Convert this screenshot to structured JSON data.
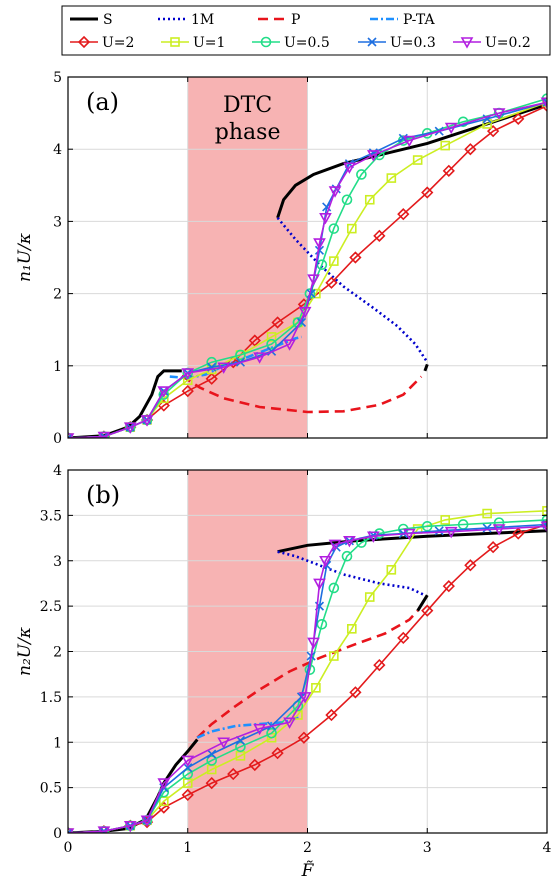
{
  "legend": {
    "row1": [
      {
        "label": "S",
        "color": "#000000",
        "dash": "solid"
      },
      {
        "label": "1M",
        "color": "#0000CC",
        "dash": "dotted"
      },
      {
        "label": "P",
        "color": "#E8141C",
        "dash": "dashed"
      },
      {
        "label": "P-TA",
        "color": "#1E90FF",
        "dash": "dashdot"
      }
    ],
    "row2": [
      {
        "label": "U=2",
        "color": "#E31A1C",
        "marker": "diamond"
      },
      {
        "label": "U=1",
        "color": "#CCEE22",
        "marker": "square"
      },
      {
        "label": "U=0.5",
        "color": "#22DD88",
        "marker": "circle"
      },
      {
        "label": "U=0.3",
        "color": "#1E6FE0",
        "marker": "x"
      },
      {
        "label": "U=0.2",
        "color": "#B21FE0",
        "marker": "triangle-down"
      }
    ]
  },
  "region": {
    "x_start": 1,
    "x_end": 2,
    "color": "#F7B3B3",
    "label_line1": "DTC",
    "label_line2": "phase"
  },
  "xaxis": {
    "label": "F̃",
    "ticks": [
      "0",
      "1",
      "2",
      "3",
      "4"
    ],
    "lim": [
      0,
      4
    ]
  },
  "chart_data": [
    {
      "type": "line",
      "panel_label": "(a)",
      "ylabel": "n₁U/κ",
      "ylim": [
        0,
        5
      ],
      "yticks": [
        "0",
        "1",
        "2",
        "3",
        "4",
        "5"
      ],
      "grid": true,
      "series": [
        {
          "name": "S",
          "lines": [
            [
              [
                0,
                0
              ],
              [
                0.3,
                0.03
              ],
              [
                0.5,
                0.15
              ],
              [
                0.6,
                0.3
              ],
              [
                0.7,
                0.6
              ],
              [
                0.75,
                0.85
              ],
              [
                0.8,
                0.93
              ],
              [
                0.9,
                0.93
              ],
              [
                0.95,
                0.93
              ]
            ],
            [
              [
                1.75,
                3.05
              ],
              [
                1.8,
                3.3
              ],
              [
                1.9,
                3.5
              ],
              [
                2.05,
                3.65
              ],
              [
                2.3,
                3.8
              ],
              [
                2.6,
                3.92
              ],
              [
                3.0,
                4.08
              ],
              [
                3.5,
                4.35
              ],
              [
                4.0,
                4.62
              ]
            ],
            [
              [
                2.98,
                0.93
              ],
              [
                3.0,
                1.02
              ]
            ]
          ]
        },
        {
          "name": "1M",
          "lines": [
            [
              [
                1.75,
                3.05
              ],
              [
                1.9,
                2.75
              ],
              [
                2.1,
                2.4
              ],
              [
                2.3,
                2.1
              ],
              [
                2.55,
                1.8
              ],
              [
                2.75,
                1.55
              ],
              [
                2.9,
                1.3
              ],
              [
                3.0,
                1.05
              ]
            ]
          ]
        },
        {
          "name": "P",
          "lines": [
            [
              [
                0.95,
                0.86
              ],
              [
                1.1,
                0.7
              ],
              [
                1.3,
                0.55
              ],
              [
                1.6,
                0.43
              ],
              [
                2.0,
                0.36
              ],
              [
                2.3,
                0.37
              ],
              [
                2.6,
                0.46
              ],
              [
                2.8,
                0.6
              ],
              [
                2.95,
                0.85
              ]
            ]
          ]
        },
        {
          "name": "P-TA",
          "lines": [
            [
              [
                0.85,
                0.85
              ],
              [
                1.0,
                0.83
              ],
              [
                1.15,
                0.88
              ],
              [
                1.3,
                1.0
              ],
              [
                1.5,
                1.12
              ],
              [
                1.7,
                1.25
              ],
              [
                1.9,
                1.38
              ],
              [
                1.95,
                1.4
              ]
            ]
          ]
        },
        {
          "name": "U=2",
          "x": [
            0,
            0.3,
            0.52,
            0.66,
            0.8,
            1.0,
            1.2,
            1.38,
            1.56,
            1.75,
            1.97,
            2.2,
            2.4,
            2.6,
            2.8,
            3.0,
            3.18,
            3.36,
            3.55,
            3.76,
            4.0
          ],
          "y": [
            0,
            0.02,
            0.15,
            0.25,
            0.45,
            0.65,
            0.82,
            1.05,
            1.35,
            1.6,
            1.85,
            2.15,
            2.5,
            2.8,
            3.1,
            3.4,
            3.7,
            4.0,
            4.25,
            4.42,
            4.6
          ]
        },
        {
          "name": "U=1",
          "x": [
            0,
            0.3,
            0.52,
            0.66,
            0.8,
            1.0,
            1.2,
            1.44,
            1.7,
            1.92,
            2.07,
            2.22,
            2.37,
            2.52,
            2.7,
            2.92,
            3.15,
            3.5,
            4.0
          ],
          "y": [
            0,
            0.02,
            0.15,
            0.25,
            0.55,
            0.8,
            0.95,
            1.15,
            1.4,
            1.6,
            2.0,
            2.45,
            2.9,
            3.3,
            3.6,
            3.85,
            4.05,
            4.35,
            4.65
          ]
        },
        {
          "name": "U=0.5",
          "x": [
            0,
            0.3,
            0.52,
            0.66,
            0.8,
            1.0,
            1.2,
            1.44,
            1.7,
            1.92,
            2.02,
            2.12,
            2.22,
            2.33,
            2.45,
            2.6,
            2.8,
            3.0,
            3.3,
            3.6,
            4.0
          ],
          "y": [
            0,
            0.02,
            0.15,
            0.25,
            0.6,
            0.9,
            1.05,
            1.15,
            1.3,
            1.6,
            2.0,
            2.4,
            2.9,
            3.3,
            3.65,
            3.92,
            4.12,
            4.22,
            4.38,
            4.5,
            4.7
          ]
        },
        {
          "name": "U=0.3",
          "x": [
            0,
            0.3,
            0.52,
            0.66,
            0.8,
            1.0,
            1.2,
            1.44,
            1.7,
            1.95,
            2.03,
            2.1,
            2.16,
            2.24,
            2.35,
            2.55,
            2.8,
            3.1,
            3.5,
            4.0
          ],
          "y": [
            0,
            0.02,
            0.15,
            0.25,
            0.65,
            0.9,
            0.98,
            1.05,
            1.2,
            1.6,
            2.0,
            2.6,
            3.2,
            3.45,
            3.8,
            3.95,
            4.15,
            4.25,
            4.42,
            4.65
          ]
        },
        {
          "name": "U=0.2",
          "x": [
            0,
            0.3,
            0.52,
            0.66,
            0.8,
            1.0,
            1.3,
            1.6,
            1.85,
            1.98,
            2.05,
            2.1,
            2.15,
            2.23,
            2.35,
            2.55,
            2.85,
            3.2,
            3.6,
            4.0
          ],
          "y": [
            0,
            0.02,
            0.15,
            0.25,
            0.65,
            0.9,
            0.98,
            1.12,
            1.3,
            1.75,
            2.2,
            2.7,
            3.05,
            3.42,
            3.75,
            3.92,
            4.12,
            4.3,
            4.5,
            4.65
          ]
        }
      ]
    },
    {
      "type": "line",
      "panel_label": "(b)",
      "ylabel": "n₂U/κ",
      "ylim": [
        0,
        4
      ],
      "yticks": [
        "0",
        "0.5",
        "1",
        "1.5",
        "2",
        "2.5",
        "3",
        "3.5",
        "4"
      ],
      "grid": true,
      "series": [
        {
          "name": "S",
          "lines": [
            [
              [
                0,
                0
              ],
              [
                0.3,
                0.02
              ],
              [
                0.5,
                0.05
              ],
              [
                0.65,
                0.15
              ],
              [
                0.75,
                0.4
              ],
              [
                0.8,
                0.55
              ],
              [
                0.9,
                0.75
              ],
              [
                1.0,
                0.9
              ],
              [
                1.08,
                1.03
              ]
            ],
            [
              [
                1.75,
                3.1
              ],
              [
                2.0,
                3.17
              ],
              [
                2.4,
                3.22
              ],
              [
                3.0,
                3.27
              ],
              [
                3.5,
                3.3
              ],
              [
                4.0,
                3.33
              ]
            ],
            [
              [
                2.92,
                2.45
              ],
              [
                3.0,
                2.62
              ]
            ]
          ]
        },
        {
          "name": "1M",
          "lines": [
            [
              [
                1.75,
                3.1
              ],
              [
                1.9,
                3.05
              ],
              [
                2.1,
                2.95
              ],
              [
                2.3,
                2.85
              ],
              [
                2.6,
                2.75
              ],
              [
                2.85,
                2.7
              ],
              [
                2.98,
                2.62
              ]
            ]
          ]
        },
        {
          "name": "P",
          "lines": [
            [
              [
                1.08,
                1.05
              ],
              [
                1.2,
                1.2
              ],
              [
                1.4,
                1.4
              ],
              [
                1.6,
                1.58
              ],
              [
                1.85,
                1.78
              ],
              [
                2.1,
                1.93
              ],
              [
                2.4,
                2.08
              ],
              [
                2.65,
                2.2
              ],
              [
                2.85,
                2.35
              ],
              [
                2.92,
                2.45
              ]
            ]
          ]
        },
        {
          "name": "P-TA",
          "lines": [
            [
              [
                1.08,
                1.05
              ],
              [
                1.2,
                1.12
              ],
              [
                1.4,
                1.18
              ],
              [
                1.6,
                1.2
              ],
              [
                1.8,
                1.22
              ],
              [
                1.95,
                1.28
              ]
            ]
          ]
        },
        {
          "name": "U=2",
          "x": [
            0,
            0.3,
            0.52,
            0.66,
            0.8,
            1.0,
            1.2,
            1.38,
            1.56,
            1.75,
            1.97,
            2.2,
            2.4,
            2.6,
            2.8,
            3.0,
            3.18,
            3.36,
            3.55,
            3.76,
            4.0
          ],
          "y": [
            0,
            0.02,
            0.08,
            0.12,
            0.28,
            0.42,
            0.55,
            0.65,
            0.75,
            0.88,
            1.05,
            1.3,
            1.55,
            1.85,
            2.15,
            2.45,
            2.72,
            2.95,
            3.15,
            3.3,
            3.4
          ]
        },
        {
          "name": "U=1",
          "x": [
            0,
            0.3,
            0.52,
            0.66,
            0.8,
            1.0,
            1.2,
            1.44,
            1.7,
            1.92,
            2.07,
            2.22,
            2.37,
            2.52,
            2.7,
            2.92,
            3.15,
            3.5,
            4.0
          ],
          "y": [
            0,
            0.02,
            0.08,
            0.14,
            0.35,
            0.55,
            0.7,
            0.85,
            1.05,
            1.3,
            1.6,
            1.95,
            2.25,
            2.6,
            2.9,
            3.35,
            3.45,
            3.52,
            3.55
          ]
        },
        {
          "name": "U=0.5",
          "x": [
            0,
            0.3,
            0.52,
            0.66,
            0.8,
            1.0,
            1.2,
            1.44,
            1.7,
            1.92,
            2.02,
            2.12,
            2.22,
            2.33,
            2.45,
            2.6,
            2.8,
            3.0,
            3.3,
            3.6,
            4.0
          ],
          "y": [
            0,
            0.02,
            0.08,
            0.14,
            0.45,
            0.65,
            0.8,
            0.95,
            1.1,
            1.4,
            1.8,
            2.3,
            2.7,
            3.05,
            3.2,
            3.3,
            3.35,
            3.38,
            3.4,
            3.42,
            3.45
          ]
        },
        {
          "name": "U=0.3",
          "x": [
            0,
            0.3,
            0.52,
            0.66,
            0.8,
            1.0,
            1.2,
            1.44,
            1.7,
            1.95,
            2.03,
            2.1,
            2.16,
            2.24,
            2.35,
            2.55,
            2.8,
            3.1,
            3.5,
            4.0
          ],
          "y": [
            0,
            0.02,
            0.08,
            0.14,
            0.5,
            0.72,
            0.87,
            1.02,
            1.18,
            1.5,
            1.95,
            2.5,
            2.95,
            3.15,
            3.22,
            3.28,
            3.3,
            3.33,
            3.36,
            3.4
          ]
        },
        {
          "name": "U=0.2",
          "x": [
            0,
            0.3,
            0.52,
            0.66,
            0.8,
            1.0,
            1.3,
            1.6,
            1.85,
            1.98,
            2.05,
            2.1,
            2.15,
            2.23,
            2.35,
            2.55,
            2.85,
            3.2,
            3.6,
            4.0
          ],
          "y": [
            0,
            0.02,
            0.08,
            0.14,
            0.55,
            0.8,
            1.0,
            1.15,
            1.22,
            1.5,
            2.1,
            2.75,
            3.0,
            3.18,
            3.22,
            3.27,
            3.3,
            3.32,
            3.35,
            3.38
          ]
        }
      ]
    }
  ]
}
